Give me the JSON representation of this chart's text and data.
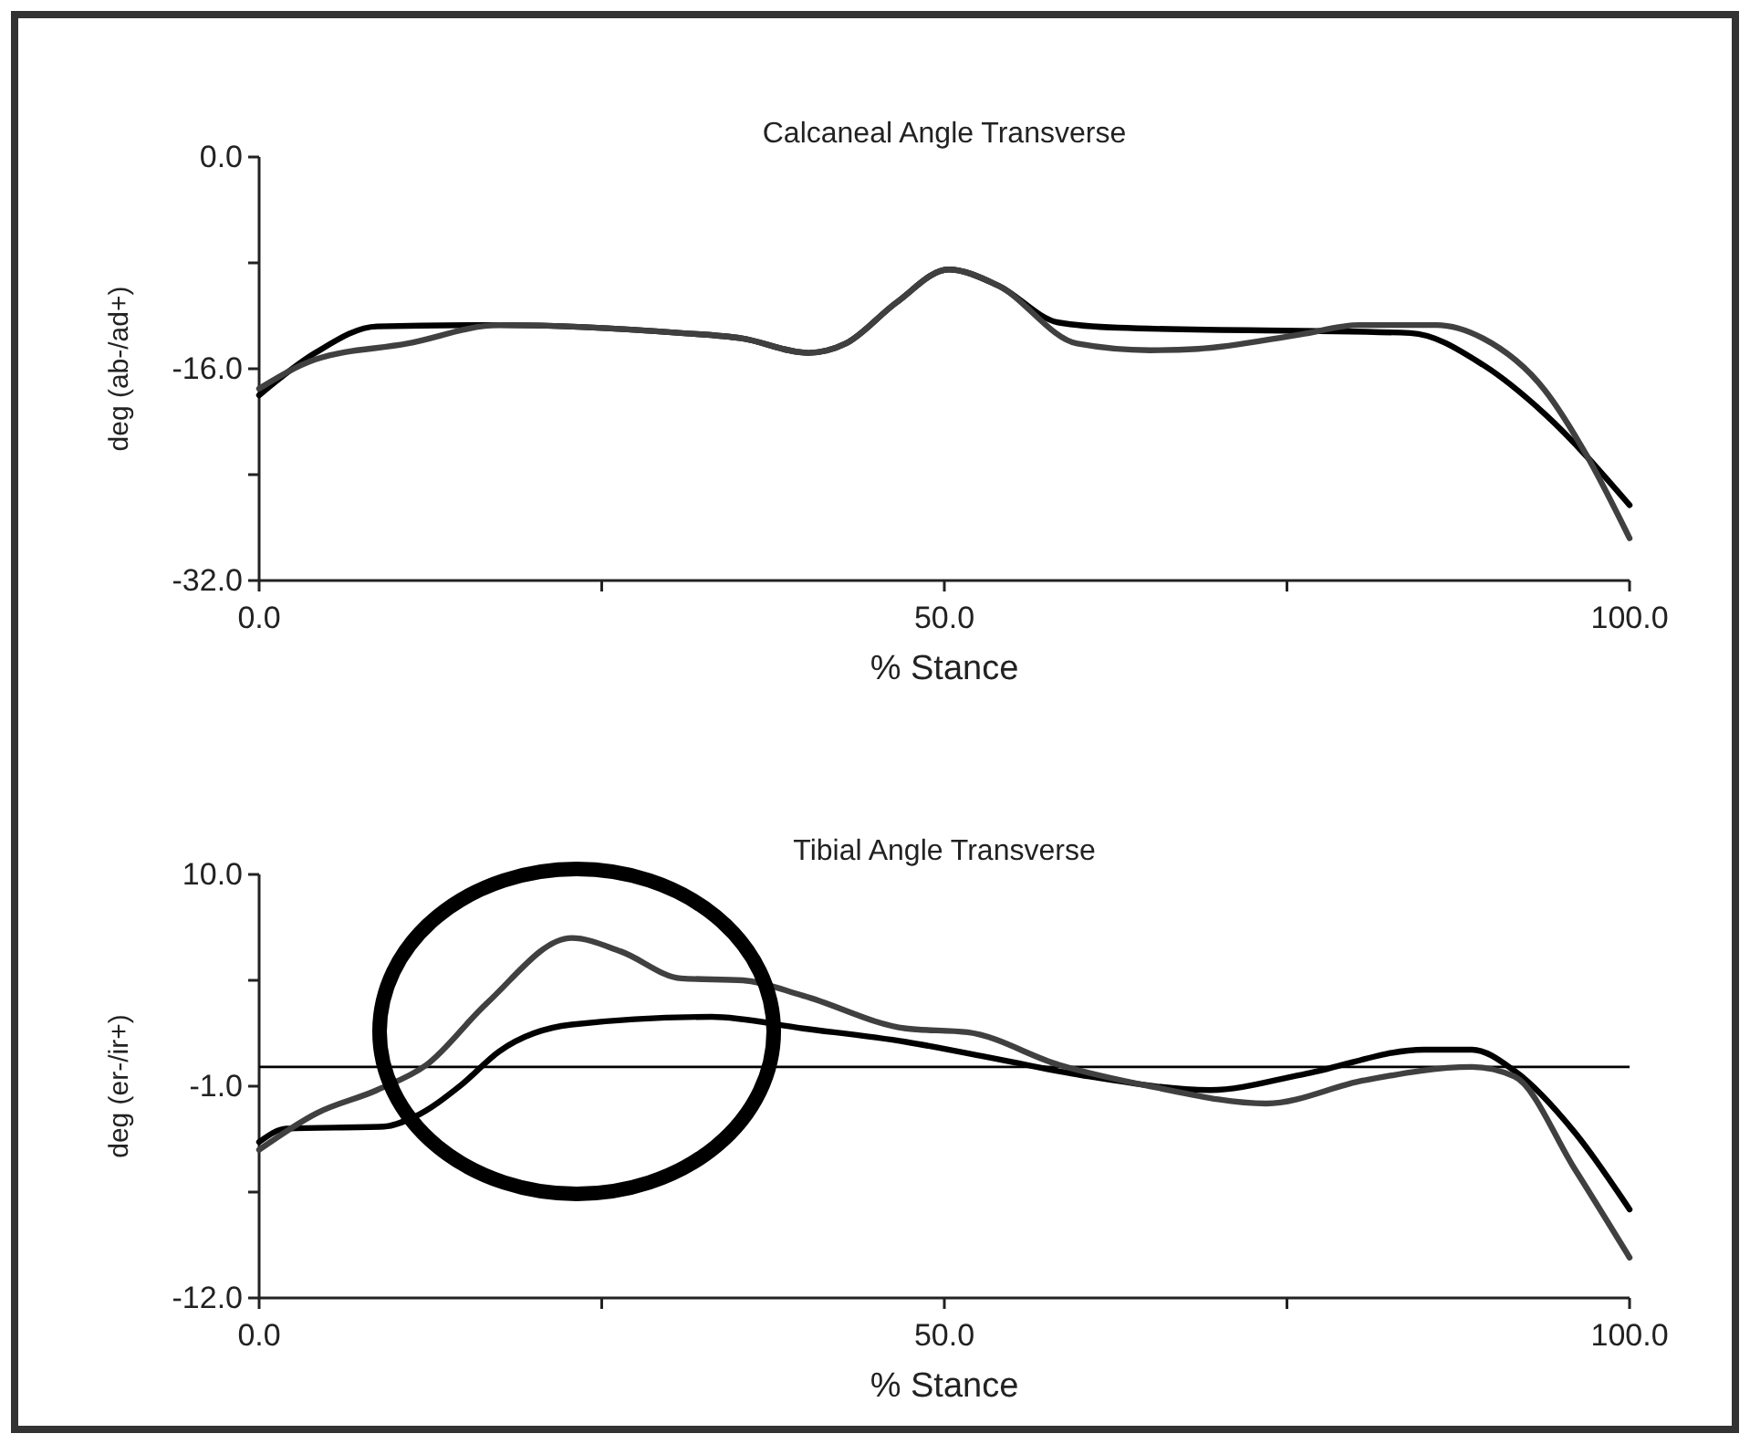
{
  "chart_data": [
    {
      "type": "line",
      "title": "Calcaneal Angle Transverse",
      "xlabel": "% Stance",
      "ylabel": "deg (ab-/ad+)",
      "xlim": [
        0,
        100
      ],
      "ylim": [
        -32,
        0
      ],
      "xticks": [
        {
          "value": 0,
          "label": "0.0"
        },
        {
          "value": 25,
          "label": null
        },
        {
          "value": 50,
          "label": "50.0"
        },
        {
          "value": 75,
          "label": null
        },
        {
          "value": 100,
          "label": "100.0"
        }
      ],
      "yticks": [
        {
          "value": 0,
          "label": "0.0"
        },
        {
          "value": -8,
          "label": null
        },
        {
          "value": -16,
          "label": "-16.0"
        },
        {
          "value": -24,
          "label": null
        },
        {
          "value": -32,
          "label": "-32.0"
        }
      ],
      "grid": false,
      "line_style": "solid",
      "series": [
        {
          "color": "#000000",
          "x": [
            0,
            4.1,
            8.6,
            17.5,
            30.8,
            35.2,
            40.1,
            42.8,
            46.5,
            50.3,
            53.9,
            58.3,
            62.7,
            84,
            89.3,
            93.8,
            100
          ],
          "values": [
            -18.0,
            -14.8,
            -12.8,
            -12.7,
            -13.3,
            -13.7,
            -14.8,
            -14.1,
            -11.0,
            -8.5,
            -9.7,
            -12.5,
            -12.9,
            -13.3,
            -15.7,
            -19.4,
            -26.3
          ]
        },
        {
          "color": "#404040",
          "x": [
            0,
            4.1,
            10.8,
            17.5,
            30.8,
            35.2,
            40.1,
            42.8,
            46.5,
            50.3,
            53.9,
            59.7,
            65,
            68.5,
            76,
            80.3,
            85.9,
            89.3,
            93.8,
            96.9,
            100
          ],
          "values": [
            -17.5,
            -15.3,
            -14.1,
            -12.7,
            -13.3,
            -13.7,
            -14.8,
            -14.1,
            -11.0,
            -8.5,
            -9.7,
            -14.1,
            -14.6,
            -14.5,
            -13.4,
            -12.7,
            -12.7,
            -13.7,
            -17.6,
            -22.6,
            -28.8
          ]
        }
      ]
    },
    {
      "type": "line",
      "title": "Tibial Angle Transverse",
      "xlabel": "% Stance",
      "ylabel": "deg (er-/ir+)",
      "xlim": [
        0,
        100
      ],
      "ylim": [
        -12,
        10
      ],
      "xticks": [
        {
          "value": 0,
          "label": "0.0"
        },
        {
          "value": 25,
          "label": null
        },
        {
          "value": 50,
          "label": "50.0"
        },
        {
          "value": 75,
          "label": null
        },
        {
          "value": 100,
          "label": "100.0"
        }
      ],
      "yticks": [
        {
          "value": 10,
          "label": "10.0"
        },
        {
          "value": 4.5,
          "label": null
        },
        {
          "value": -1,
          "label": "-1.0"
        },
        {
          "value": -6.5,
          "label": null
        },
        {
          "value": -12,
          "label": "-12.0"
        }
      ],
      "grid": false,
      "line_style": "solid",
      "ref_lines": [
        {
          "axis": "y",
          "value": 0,
          "color": "#000000"
        }
      ],
      "series": [
        {
          "color": "#000000",
          "x": [
            0,
            2,
            9.1,
            11.3,
            14.8,
            17.5,
            22.8,
            33,
            39.7,
            47.2,
            53.9,
            60.6,
            69.4,
            76.1,
            85,
            88.5,
            91.6,
            96,
            100
          ],
          "values": [
            -3.9,
            -3.2,
            -3.1,
            -2.6,
            -0.9,
            0.8,
            2.2,
            2.6,
            2.0,
            1.3,
            0.4,
            -0.5,
            -1.2,
            -0.4,
            0.9,
            0.9,
            -0.2,
            -3.4,
            -7.4
          ]
        },
        {
          "color": "#404040",
          "x": [
            0,
            4.2,
            8.6,
            12.2,
            16.6,
            22.8,
            26.4,
            30.8,
            35.3,
            39.7,
            47.2,
            51.7,
            58.4,
            65,
            73.5,
            80.6,
            88.5,
            91.6,
            96,
            100
          ],
          "values": [
            -4.3,
            -2.4,
            -1.2,
            0.1,
            3.3,
            6.7,
            6.0,
            4.6,
            4.5,
            3.7,
            2.0,
            1.8,
            0.1,
            -1.0,
            -1.9,
            -0.7,
            0.0,
            -0.5,
            -5.3,
            -9.9
          ]
        }
      ]
    }
  ]
}
